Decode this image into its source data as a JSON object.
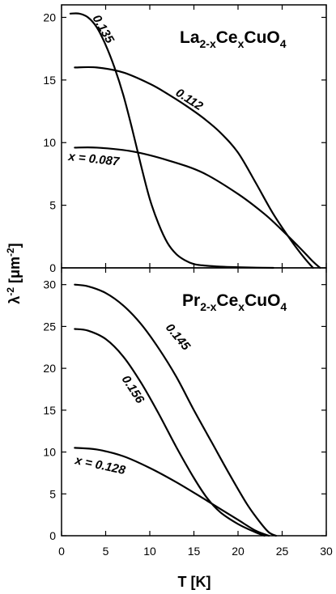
{
  "chart_data": [
    {
      "type": "line",
      "title_main": "La",
      "title_sub1": "2-x",
      "title_mid": "Ce",
      "title_sub2": "x",
      "title_end": "CuO",
      "title_sub3": "4",
      "xlim": [
        0,
        30
      ],
      "ylim": [
        0,
        21
      ],
      "xticks": [
        0,
        5,
        10,
        15,
        20,
        25,
        30
      ],
      "yticks": [
        0,
        5,
        10,
        15,
        20
      ],
      "series": [
        {
          "name": "0.135",
          "x": [
            1.0,
            2.0,
            3.0,
            4.0,
            5.0,
            6.0,
            7.0,
            8.0,
            9.0,
            10.0,
            11.0,
            12.0,
            13.0,
            14.0,
            15.0,
            16.0,
            18.0,
            20.0,
            22.0,
            24.0
          ],
          "y": [
            20.3,
            20.3,
            20.0,
            19.2,
            17.8,
            16.0,
            13.8,
            11.1,
            8.2,
            5.5,
            3.5,
            2.0,
            1.1,
            0.6,
            0.3,
            0.2,
            0.1,
            0.05,
            0.02,
            0.0
          ]
        },
        {
          "name": "0.112",
          "x": [
            1.5,
            4.0,
            7.0,
            10.0,
            12.0,
            14.0,
            16.0,
            18.0,
            20.0,
            22.0,
            24.0,
            26.0,
            27.5,
            28.5
          ],
          "y": [
            16.0,
            16.0,
            15.6,
            14.7,
            13.9,
            13.0,
            12.0,
            10.8,
            9.2,
            6.8,
            4.3,
            2.2,
            0.8,
            0.0
          ]
        },
        {
          "name": "x = 0.087",
          "x": [
            1.5,
            4.0,
            8.0,
            12.0,
            16.0,
            20.0,
            23.0,
            25.0,
            27.0,
            28.5,
            29.3
          ],
          "y": [
            9.6,
            9.6,
            9.3,
            8.6,
            7.6,
            5.9,
            4.3,
            3.0,
            1.6,
            0.5,
            0.0
          ]
        }
      ],
      "label_series": [
        "0.135",
        "0.112",
        "x = 0.087"
      ]
    },
    {
      "type": "line",
      "title_main": "Pr",
      "title_sub1": "2-x",
      "title_mid": "Ce",
      "title_sub2": "x",
      "title_end": "CuO",
      "title_sub3": "4",
      "xlim": [
        0,
        30
      ],
      "ylim": [
        0,
        32
      ],
      "xticks": [
        0,
        5,
        10,
        15,
        20,
        25,
        30
      ],
      "yticks": [
        0,
        5,
        10,
        15,
        20,
        25,
        30
      ],
      "series": [
        {
          "name": "0.145",
          "x": [
            1.5,
            3.0,
            5.0,
            7.0,
            9.0,
            11.0,
            13.0,
            15.0,
            17.0,
            19.0,
            21.0,
            22.5,
            23.5,
            24.3
          ],
          "y": [
            30.0,
            29.8,
            29.0,
            27.5,
            25.3,
            22.4,
            19.0,
            15.0,
            11.2,
            7.4,
            3.8,
            1.6,
            0.4,
            0.0
          ]
        },
        {
          "name": "0.156",
          "x": [
            1.5,
            3.0,
            5.0,
            7.0,
            9.0,
            11.0,
            13.0,
            15.0,
            16.5,
            18.0,
            20.0,
            22.0,
            23.0
          ],
          "y": [
            24.7,
            24.5,
            23.5,
            21.4,
            18.3,
            14.6,
            10.6,
            6.9,
            4.5,
            2.8,
            1.4,
            0.4,
            0.0
          ]
        },
        {
          "name": "x = 0.128",
          "x": [
            1.5,
            4.0,
            7.0,
            10.0,
            13.0,
            16.0,
            18.0,
            20.0,
            22.0,
            23.5
          ],
          "y": [
            10.5,
            10.3,
            9.5,
            8.1,
            6.4,
            4.5,
            3.2,
            1.9,
            0.6,
            0.0
          ]
        }
      ],
      "label_series": [
        "0.145",
        "0.156",
        "x = 0.128"
      ]
    }
  ],
  "axes": {
    "xlabel": "T [K]",
    "ylabel_main": "λ",
    "ylabel_sup1": "-2",
    "ylabel_mid": " [μm",
    "ylabel_sup2": "-2",
    "ylabel_end": "]"
  }
}
